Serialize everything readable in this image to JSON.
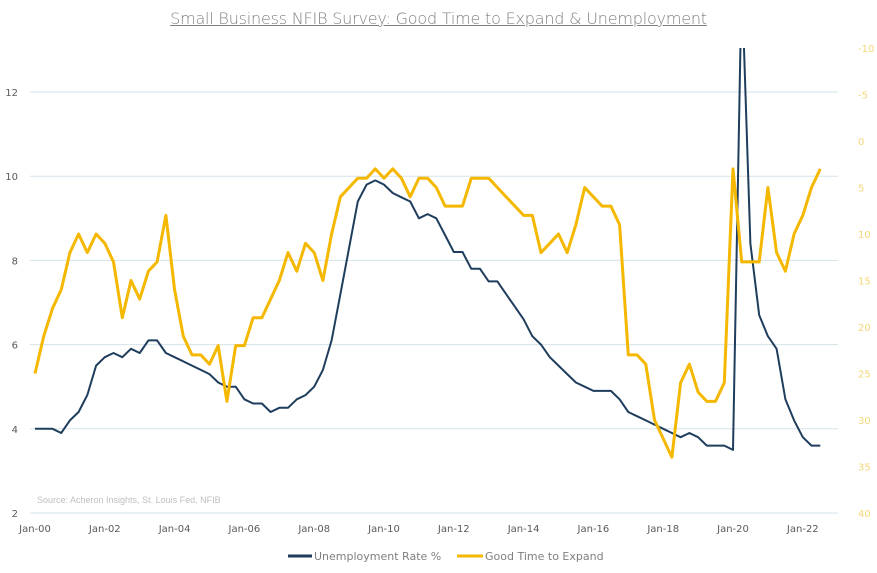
{
  "chart_data": {
    "type": "line",
    "title": "Small Business NFIB Survey: Good Time to Expand & Unemployment",
    "source": "Source: Acheron Insights, St. Louis Fed, NFIB",
    "xlabel": "",
    "ylabel_left": "",
    "ylabel_right": "",
    "x_ticks": [
      "Jan-00",
      "Jan-02",
      "Jan-04",
      "Jan-06",
      "Jan-08",
      "Jan-10",
      "Jan-12",
      "Jan-14",
      "Jan-16",
      "Jan-18",
      "Jan-20",
      "Jan-22"
    ],
    "x_range": [
      2000.0,
      2022.75
    ],
    "y_left": {
      "ticks": [
        "2",
        "4",
        "6",
        "8",
        "10",
        "12"
      ],
      "range": [
        2,
        13
      ]
    },
    "y_right": {
      "ticks": [
        "-10",
        "-5",
        "0",
        "5",
        "10",
        "15",
        "20",
        "25",
        "30",
        "35",
        "40"
      ],
      "range": [
        -10,
        40
      ],
      "inverted": true
    },
    "grid": true,
    "legend_position": "bottom-center",
    "colors": {
      "unemployment": "#1f3d5c",
      "good_time": "#f5b800",
      "grid": "#d6e3ea",
      "right_axis_text": "#f5d77a"
    },
    "series": [
      {
        "name": "Unemployment Rate %",
        "axis": "left",
        "start": 2000.0,
        "step": 0.25,
        "values": [
          4.0,
          4.0,
          4.0,
          3.9,
          4.2,
          4.4,
          4.8,
          5.5,
          5.7,
          5.8,
          5.7,
          5.9,
          5.8,
          6.1,
          6.1,
          5.8,
          5.7,
          5.6,
          5.5,
          5.4,
          5.3,
          5.1,
          5.0,
          5.0,
          4.7,
          4.6,
          4.6,
          4.4,
          4.5,
          4.5,
          4.7,
          4.8,
          5.0,
          5.4,
          6.1,
          7.2,
          8.3,
          9.4,
          9.8,
          9.9,
          9.8,
          9.6,
          9.5,
          9.4,
          9.0,
          9.1,
          9.0,
          8.6,
          8.2,
          8.2,
          7.8,
          7.8,
          7.5,
          7.5,
          7.2,
          6.9,
          6.6,
          6.2,
          6.0,
          5.7,
          5.5,
          5.3,
          5.1,
          5.0,
          4.9,
          4.9,
          4.9,
          4.7,
          4.4,
          4.3,
          4.2,
          4.1,
          4.0,
          3.9,
          3.8,
          3.9,
          3.8,
          3.6,
          3.6,
          3.6,
          3.5,
          14.7,
          8.4,
          6.7,
          6.2,
          5.9,
          4.7,
          4.2,
          3.8,
          3.6,
          3.6
        ]
      },
      {
        "name": "Good Time to Expand",
        "axis": "right",
        "start": 2000.0,
        "step": 0.25,
        "values": [
          25,
          21,
          18,
          16,
          12,
          10,
          12,
          10,
          11,
          13,
          19,
          15,
          17,
          14,
          13,
          8,
          16,
          21,
          23,
          23,
          24,
          22,
          28,
          22,
          22,
          19,
          19,
          17,
          15,
          12,
          14,
          11,
          12,
          15,
          10,
          6,
          5,
          4,
          4,
          3,
          4,
          3,
          4,
          6,
          4,
          4,
          5,
          7,
          7,
          7,
          4,
          4,
          4,
          5,
          6,
          7,
          8,
          8,
          12,
          11,
          10,
          12,
          9,
          5,
          6,
          7,
          7,
          9,
          23,
          23,
          24,
          30,
          32,
          34,
          26,
          24,
          27,
          28,
          28,
          26,
          3,
          13,
          13,
          13,
          5,
          12,
          14,
          10,
          8,
          5,
          3
        ]
      }
    ]
  }
}
